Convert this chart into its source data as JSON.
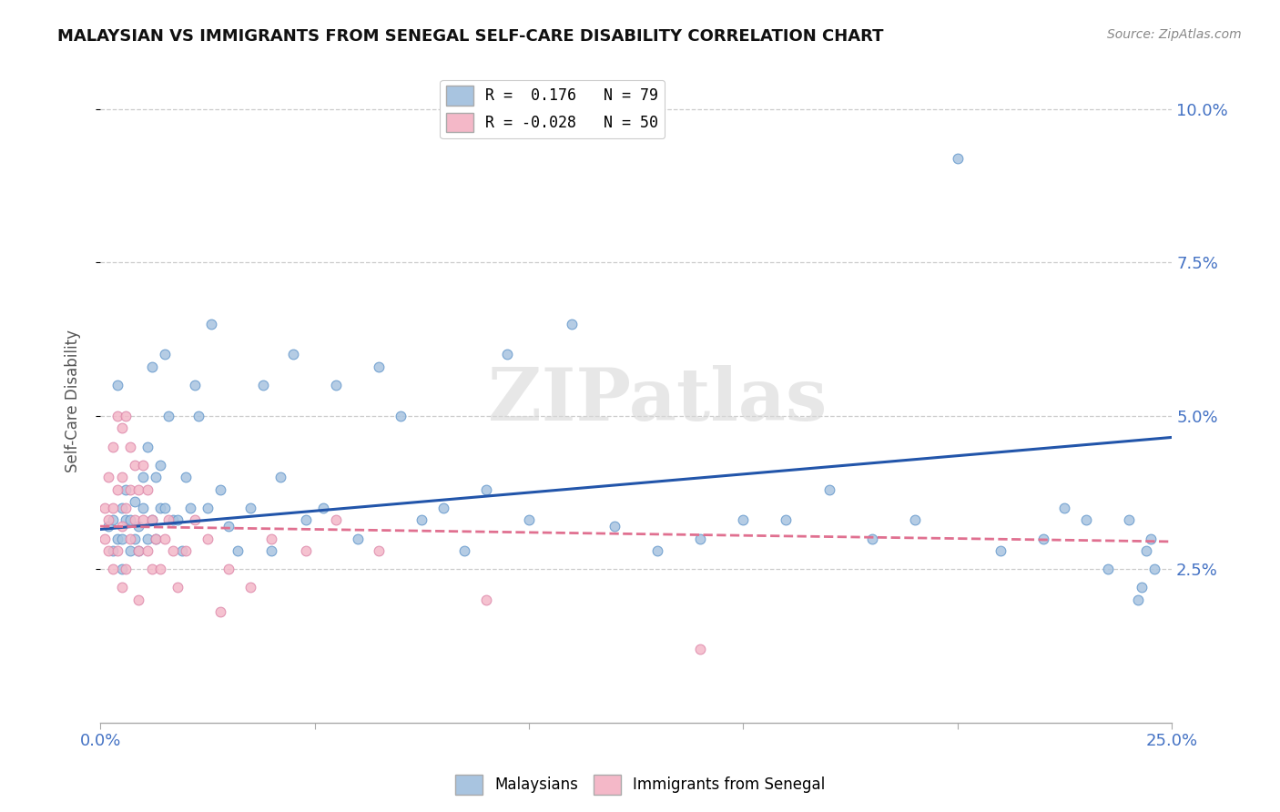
{
  "title": "MALAYSIAN VS IMMIGRANTS FROM SENEGAL SELF-CARE DISABILITY CORRELATION CHART",
  "source": "Source: ZipAtlas.com",
  "ylabel": "Self-Care Disability",
  "xlim": [
    0.0,
    0.25
  ],
  "ylim": [
    0.0,
    0.105
  ],
  "xtick_positions": [
    0.0,
    0.05,
    0.1,
    0.15,
    0.2,
    0.25
  ],
  "xtick_labels": [
    "0.0%",
    "",
    "",
    "",
    "",
    "25.0%"
  ],
  "ytick_positions": [
    0.025,
    0.05,
    0.075,
    0.1
  ],
  "ytick_labels": [
    "2.5%",
    "5.0%",
    "7.5%",
    "10.0%"
  ],
  "blue_color": "#a8c4e0",
  "pink_color": "#f4b8c8",
  "blue_line_color": "#2255aa",
  "pink_line_color": "#e07090",
  "watermark_text": "ZIPatlas",
  "legend_r1_label": "R =  0.176   N = 79",
  "legend_r2_label": "R = -0.028   N = 50",
  "bottom_legend_1": "Malaysians",
  "bottom_legend_2": "Immigrants from Senegal",
  "blue_line_x": [
    0.0,
    0.25
  ],
  "blue_line_y": [
    0.0315,
    0.0465
  ],
  "pink_line_x": [
    0.0,
    0.25
  ],
  "pink_line_y": [
    0.032,
    0.0295
  ],
  "malaysians_x": [
    0.002,
    0.003,
    0.003,
    0.004,
    0.004,
    0.005,
    0.005,
    0.005,
    0.006,
    0.006,
    0.007,
    0.007,
    0.008,
    0.008,
    0.009,
    0.009,
    0.01,
    0.01,
    0.011,
    0.011,
    0.012,
    0.012,
    0.013,
    0.013,
    0.014,
    0.014,
    0.015,
    0.015,
    0.016,
    0.017,
    0.018,
    0.019,
    0.02,
    0.021,
    0.022,
    0.023,
    0.025,
    0.026,
    0.028,
    0.03,
    0.032,
    0.035,
    0.038,
    0.04,
    0.042,
    0.045,
    0.048,
    0.052,
    0.055,
    0.06,
    0.065,
    0.07,
    0.075,
    0.08,
    0.085,
    0.09,
    0.095,
    0.1,
    0.11,
    0.12,
    0.13,
    0.14,
    0.15,
    0.16,
    0.17,
    0.18,
    0.19,
    0.2,
    0.21,
    0.22,
    0.225,
    0.23,
    0.235,
    0.24,
    0.242,
    0.243,
    0.244,
    0.245,
    0.246
  ],
  "malaysians_y": [
    0.032,
    0.033,
    0.028,
    0.03,
    0.055,
    0.035,
    0.03,
    0.025,
    0.033,
    0.038,
    0.028,
    0.033,
    0.03,
    0.036,
    0.032,
    0.028,
    0.035,
    0.04,
    0.045,
    0.03,
    0.033,
    0.058,
    0.03,
    0.04,
    0.042,
    0.035,
    0.06,
    0.035,
    0.05,
    0.033,
    0.033,
    0.028,
    0.04,
    0.035,
    0.055,
    0.05,
    0.035,
    0.065,
    0.038,
    0.032,
    0.028,
    0.035,
    0.055,
    0.028,
    0.04,
    0.06,
    0.033,
    0.035,
    0.055,
    0.03,
    0.058,
    0.05,
    0.033,
    0.035,
    0.028,
    0.038,
    0.06,
    0.033,
    0.065,
    0.032,
    0.028,
    0.03,
    0.033,
    0.033,
    0.038,
    0.03,
    0.033,
    0.092,
    0.028,
    0.03,
    0.035,
    0.033,
    0.025,
    0.033,
    0.02,
    0.022,
    0.028,
    0.03,
    0.025
  ],
  "senegal_x": [
    0.001,
    0.001,
    0.002,
    0.002,
    0.002,
    0.003,
    0.003,
    0.003,
    0.004,
    0.004,
    0.004,
    0.005,
    0.005,
    0.005,
    0.005,
    0.006,
    0.006,
    0.006,
    0.007,
    0.007,
    0.007,
    0.008,
    0.008,
    0.009,
    0.009,
    0.009,
    0.01,
    0.01,
    0.011,
    0.011,
    0.012,
    0.012,
    0.013,
    0.014,
    0.015,
    0.016,
    0.017,
    0.018,
    0.02,
    0.022,
    0.025,
    0.028,
    0.03,
    0.035,
    0.04,
    0.048,
    0.055,
    0.065,
    0.09,
    0.14
  ],
  "senegal_y": [
    0.03,
    0.035,
    0.028,
    0.04,
    0.033,
    0.045,
    0.035,
    0.025,
    0.05,
    0.038,
    0.028,
    0.048,
    0.032,
    0.04,
    0.022,
    0.05,
    0.035,
    0.025,
    0.045,
    0.03,
    0.038,
    0.033,
    0.042,
    0.028,
    0.038,
    0.02,
    0.033,
    0.042,
    0.028,
    0.038,
    0.025,
    0.033,
    0.03,
    0.025,
    0.03,
    0.033,
    0.028,
    0.022,
    0.028,
    0.033,
    0.03,
    0.018,
    0.025,
    0.022,
    0.03,
    0.028,
    0.033,
    0.028,
    0.02,
    0.012
  ]
}
